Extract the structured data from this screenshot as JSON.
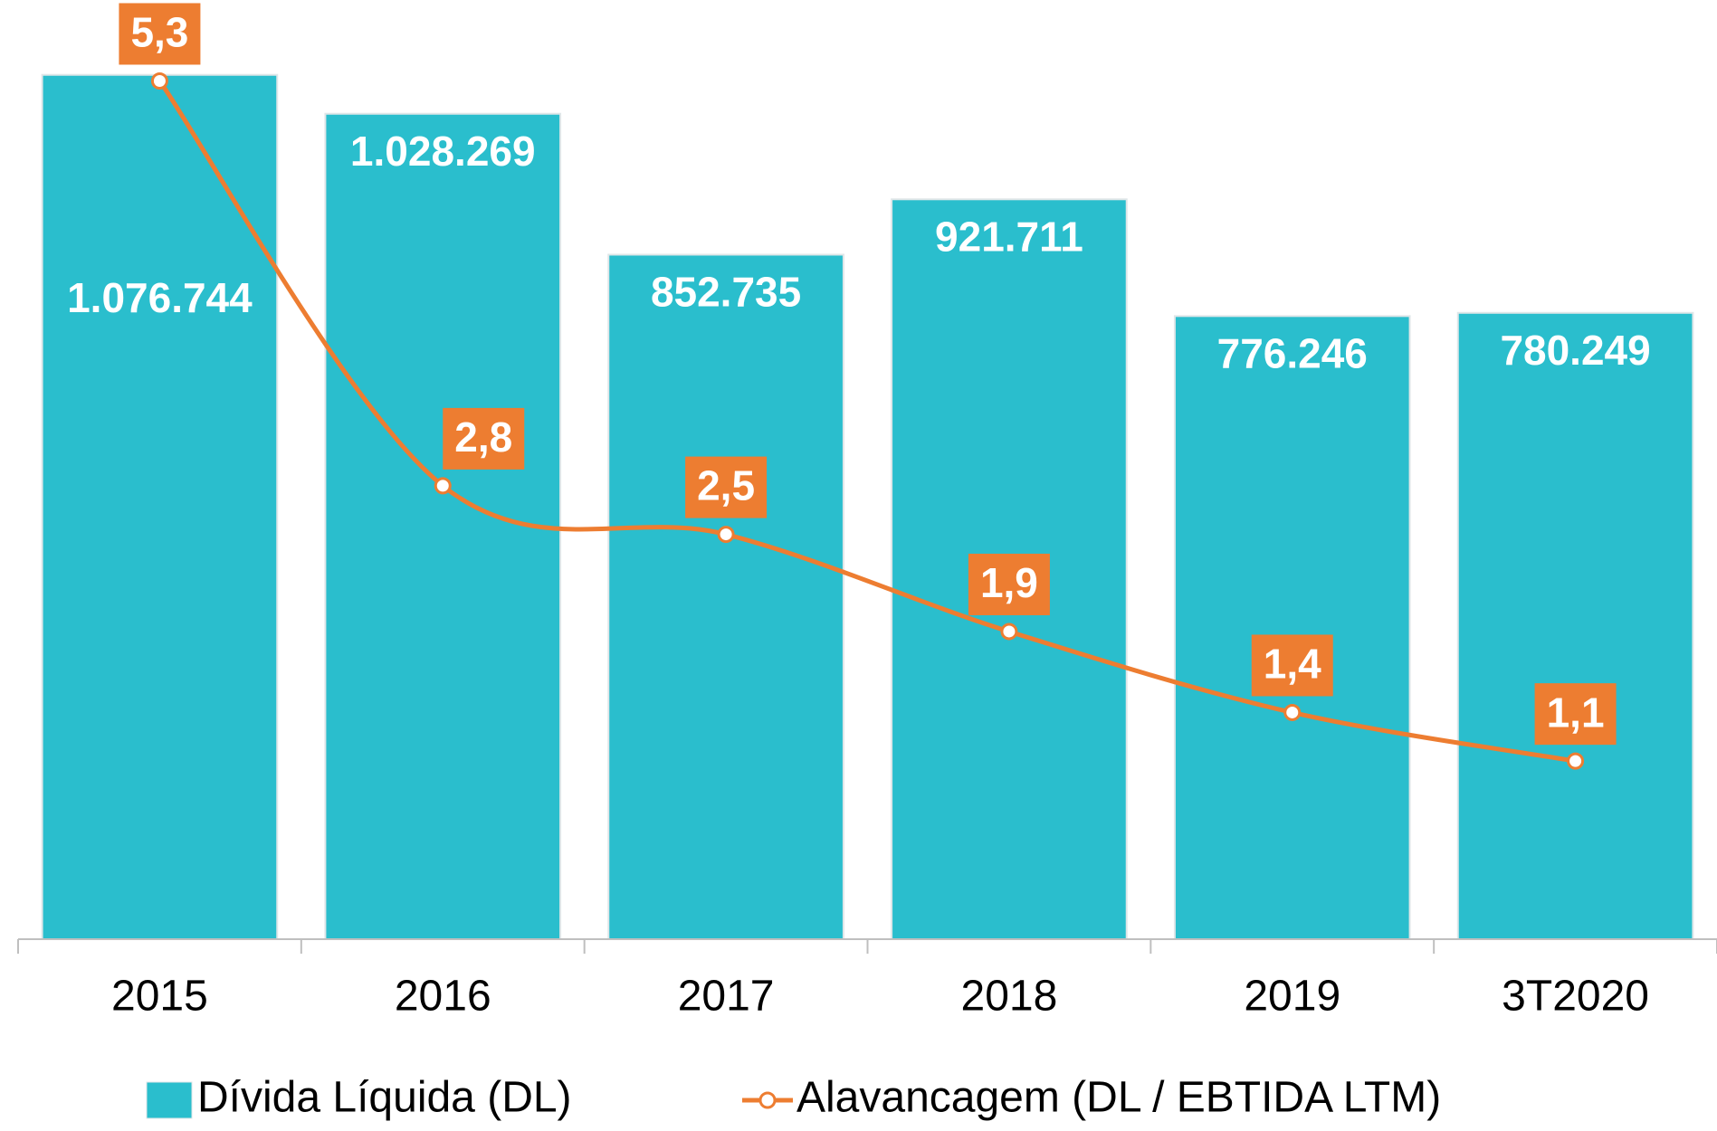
{
  "chart_data": {
    "type": "bar_line",
    "categories": [
      "2015",
      "2016",
      "2017",
      "2018",
      "2019",
      "3T2020"
    ],
    "series": [
      {
        "name": "Dívida Líquida (DL)",
        "type": "bar",
        "color": "#2abecd",
        "values": [
          1076744,
          1028269,
          852735,
          921711,
          776246,
          780249
        ],
        "value_labels": [
          "1.076.744",
          "1.028.269",
          "852.735",
          "921.711",
          "776.246",
          "780.249"
        ]
      },
      {
        "name": "Alavancagem (DL / EBTIDA LTM)",
        "type": "line",
        "axis": "y2",
        "color": "#ed7d31",
        "values": [
          5.3,
          2.8,
          2.5,
          1.9,
          1.4,
          1.1
        ],
        "value_labels": [
          "5,3",
          "2,8",
          "2,5",
          "1,9",
          "1,4",
          "1,1"
        ]
      }
    ],
    "ylim": [
      0,
      1170000
    ],
    "y2lim": [
      0,
      5.8
    ],
    "grid": false,
    "legend": "bottom"
  }
}
